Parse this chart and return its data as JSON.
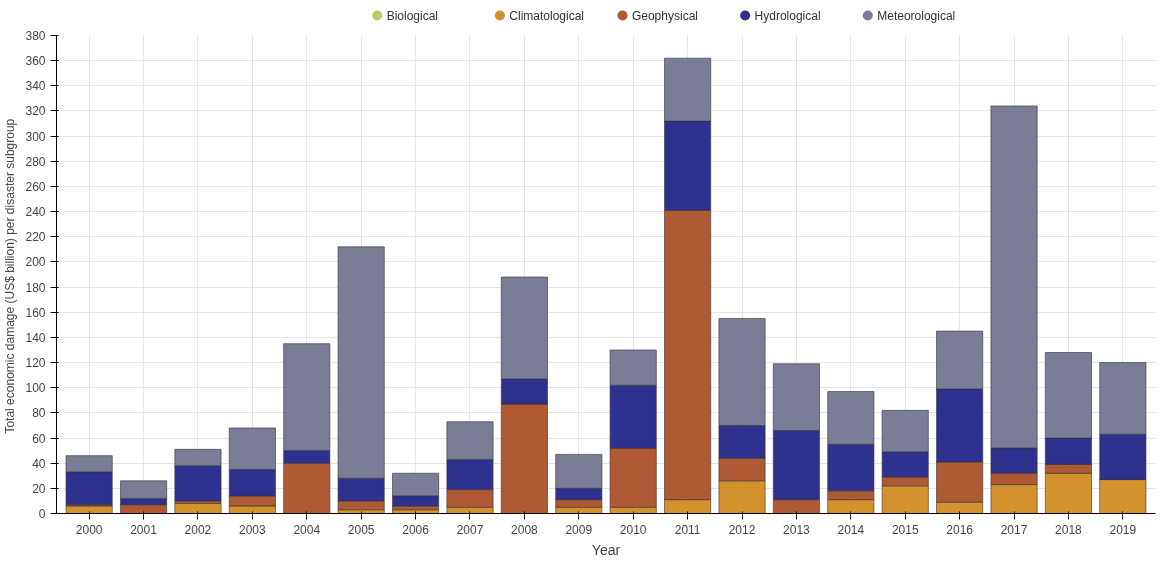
{
  "chart_data": {
    "type": "bar",
    "stacked": true,
    "xlabel": "Year",
    "ylabel": "Total economic damage (US$ billion) per  disaster subgroup",
    "categories": [
      "2000",
      "2001",
      "2002",
      "2003",
      "2004",
      "2005",
      "2006",
      "2007",
      "2008",
      "2009",
      "2010",
      "2011",
      "2012",
      "2013",
      "2014",
      "2015",
      "2016",
      "2017",
      "2018",
      "2019"
    ],
    "series": [
      {
        "name": "Biological",
        "color": "#b5cf5f",
        "values": [
          0,
          0,
          0,
          0,
          0,
          0,
          0,
          0,
          0,
          0,
          0,
          0,
          0,
          0,
          0,
          0,
          0,
          0,
          0,
          0
        ]
      },
      {
        "name": "Climatological",
        "color": "#d4922e",
        "values": [
          6,
          null,
          8,
          6,
          0,
          3,
          3,
          5,
          0,
          5,
          5,
          11,
          26,
          null,
          11,
          22,
          9,
          23,
          32,
          27
        ]
      },
      {
        "name": "Geophysical",
        "color": "#b05a35",
        "values": [
          1,
          7,
          2,
          8,
          40,
          7,
          3,
          14,
          87,
          6,
          47,
          230,
          18,
          11,
          7,
          7,
          32,
          9,
          7,
          0
        ]
      },
      {
        "name": "Hydrological",
        "color": "#2e3190",
        "values": [
          26,
          5,
          28,
          21,
          10,
          18,
          8,
          24,
          20,
          9,
          50,
          71,
          26,
          55,
          37,
          20,
          58,
          20,
          21,
          36
        ]
      },
      {
        "name": "Meteorological",
        "color": "#7a7d95",
        "values": [
          13,
          14,
          13,
          33,
          85,
          184,
          18,
          30,
          81,
          27,
          28,
          50,
          85,
          53,
          42,
          33,
          46,
          272,
          68,
          57
        ]
      }
    ],
    "ylim": [
      0,
      380
    ],
    "yticks": [
      0,
      20,
      40,
      60,
      80,
      100,
      120,
      140,
      160,
      180,
      200,
      220,
      240,
      260,
      280,
      300,
      320,
      340,
      360,
      380
    ],
    "grid": true,
    "legend": "top"
  }
}
